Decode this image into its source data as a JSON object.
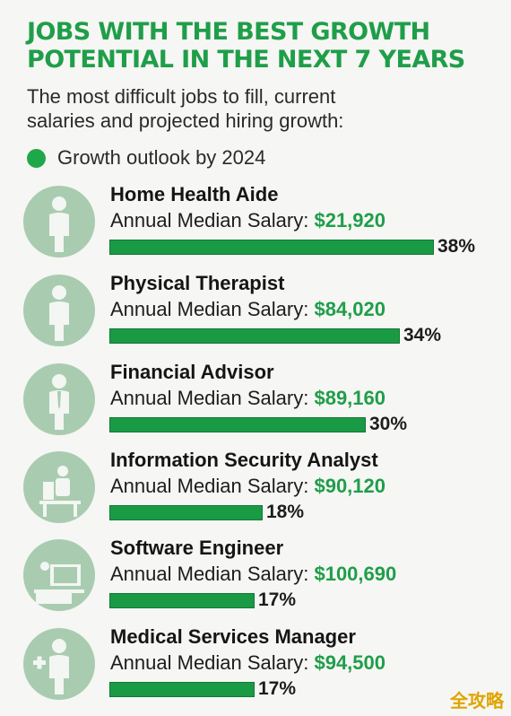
{
  "header": {
    "title_line1": "JOBS WITH THE BEST GROWTH",
    "title_line2": "POTENTIAL IN THE NEXT 7 YEARS",
    "subtitle_line1": "The most difficult jobs to fill, current",
    "subtitle_line2": "salaries and projected hiring growth:",
    "legend_label": "Growth outlook by 2024"
  },
  "colors": {
    "accent_green": "#1f9e49",
    "avatar_circle": "#a9ccb0",
    "avatar_figure": "#f3f6f2"
  },
  "salary_prefix": "Annual Median Salary: ",
  "chart_data": {
    "type": "bar",
    "title": "JOBS WITH THE BEST GROWTH POTENTIAL IN THE NEXT 7 YEARS",
    "subtitle": "The most difficult jobs to fill, current salaries and projected hiring growth:",
    "legend": "Growth outlook by 2024",
    "categories": [
      "Home Health Aide",
      "Physical Therapist",
      "Financial Advisor",
      "Information Security Analyst",
      "Software Engineer",
      "Medical Services Manager"
    ],
    "values": [
      38,
      34,
      30,
      18,
      17,
      17
    ],
    "labels": [
      "38%",
      "34%",
      "30%",
      "18%",
      "17%",
      "17%"
    ],
    "salaries": [
      "$21,920",
      "$84,020",
      "$89,160",
      "$90,120",
      "$100,690",
      "$94,500"
    ],
    "icons": [
      "person-icon",
      "person-icon",
      "businessman-icon",
      "desk-worker-icon",
      "computer-user-icon",
      "medical-cross-person-icon"
    ],
    "xlim": [
      0,
      38
    ]
  },
  "watermark": "全攻略"
}
